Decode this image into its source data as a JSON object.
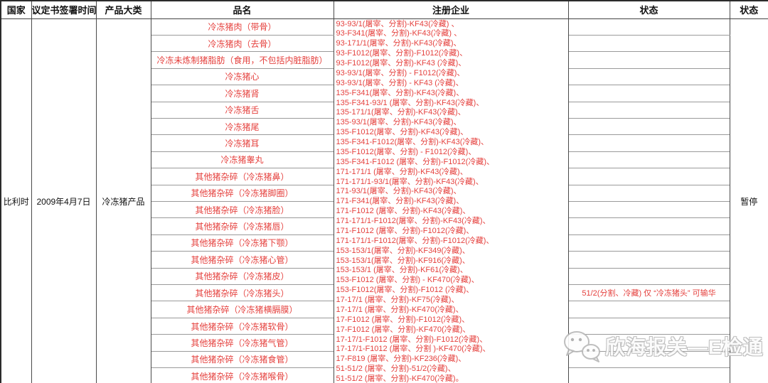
{
  "colors": {
    "accent_red": "#e5413e",
    "border_dark": "#4a4a4a",
    "border_light": "#9a9a9a",
    "watermark_gray": "#b8b8b8"
  },
  "header": {
    "columns": [
      "国家",
      "议定书签署时间",
      "产品大类",
      "品名",
      "注册企业",
      "状态",
      "状态"
    ]
  },
  "record": {
    "country": "比利时",
    "protocol_date": "2009年4月7日",
    "product_category": "冷冻猪产品",
    "final_status": "暂停",
    "products": [
      {
        "name": "冷冻猪肉（带骨）",
        "status": ""
      },
      {
        "name": "冷冻猪肉（去骨）",
        "status": ""
      },
      {
        "name": "冷冻未炼制猪脂肪（食用，不包括内脏脂肪）",
        "status": ""
      },
      {
        "name": "冷冻猪心",
        "status": ""
      },
      {
        "name": "冷冻猪肾",
        "status": ""
      },
      {
        "name": "冷冻猪舌",
        "status": ""
      },
      {
        "name": "冷冻猪尾",
        "status": ""
      },
      {
        "name": "冷冻猪耳",
        "status": ""
      },
      {
        "name": "冷冻猪睾丸",
        "status": ""
      },
      {
        "name": "其他猪杂碎（冷冻猪鼻）",
        "status": ""
      },
      {
        "name": "其他猪杂碎（冷冻猪脚圈）",
        "status": ""
      },
      {
        "name": "其他猪杂碎（冷冻猪脸）",
        "status": ""
      },
      {
        "name": "其他猪杂碎（冷冻猪唇）",
        "status": ""
      },
      {
        "name": "其他猪杂碎（冷冻猪下颚）",
        "status": ""
      },
      {
        "name": "其他猪杂碎（冷冻猪心管）",
        "status": ""
      },
      {
        "name": "其他猪杂碎（冷冻猪皮）",
        "status": ""
      },
      {
        "name": "其他猪杂碎（冷冻猪头）",
        "status": "51/2(分割、冷藏) 仅 “冷冻猪头” 可输华"
      },
      {
        "name": "其他猪杂碎（冷冻猪横膈膜）",
        "status": ""
      },
      {
        "name": "其他猪杂碎（冷冻猪软骨）",
        "status": ""
      },
      {
        "name": "其他猪杂碎（冷冻猪气管）",
        "status": ""
      },
      {
        "name": "其他猪杂碎（冷冻猪食管）",
        "status": ""
      },
      {
        "name": "其他猪杂碎（冷冻猪喉骨）",
        "status": ""
      }
    ],
    "registered_enterprises": [
      "93-93/1(屠宰、分割)-KF43(冷藏) 、",
      "93-F341(屠宰、分割)-KF43(冷藏) 、",
      "93-171/1(屠宰、分割)-KF43(冷藏)、",
      "93-F1012(屠宰、分割)-F1012(冷藏)、",
      "93-F1012(屠宰、分割)-KF43 (冷藏)、",
      "93-93/1(屠宰、分割) - F1012(冷藏)、",
      "93-93/1(屠宰、分割) - KF43 (冷藏)、",
      "135-F341(屠宰、分割)-KF43(冷藏)、",
      "135-F341-93/1 (屠宰、分割)-KF43(冷藏)、",
      "135-171/1(屠宰、分割)-KF43(冷藏)、",
      "135-93/1(屠宰、分割)-KF43(冷藏)、",
      "135-F1012(屠宰、分割)-KF43(冷藏)、",
      "135-F341-F1012(屠宰、分割)-KF43(冷藏)、",
      "135-F1012(屠宰、分割) - F1012(冷藏)、",
      "135-F341-F1012 (屠宰、分割)-F1012(冷藏)、",
      "171-171/1 (屠宰、分割)-KF43(冷藏)、",
      "171-171/1-93/1(屠宰、分割)-KF43(冷藏)、",
      "171-93/1(屠宰、分割)-KF43(冷藏)、",
      "171-F341(屠宰、分割)-KF43(冷藏)、",
      "171-F1012 (屠宰、分割)-KF43(冷藏)、",
      "171-171/1-F1012(屠宰、分割)-KF43(冷藏)、",
      "171-F1012 (屠宰、分割)-F1012(冷藏)、",
      "171-171/1-F1012(屠宰、分割)-F1012(冷藏)、",
      "153-153/1(屠宰、分割)-KF349(冷藏)、",
      "153-153/1(屠宰、分割)-KF916(冷藏)、",
      "153-153/1 (屠宰、分割)-KF61(冷藏)、",
      "153-F1012 (屠宰、分割) - KF470(冷藏)、",
      "153-F1012(屠宰、分割)-F1012 (冷藏)、",
      "17-17/1 (屠宰、分割)-KF75(冷藏)、",
      "17-17/1 (屠宰、分割)-KF470(冷藏)、",
      "17-F1012 (屠宰、分割)-F1012(冷藏)、",
      "17-F1012 (屠宰、分割)-KF470(冷藏)、",
      "17-17/1-F1012 (屠宰、分割)-F1012(冷藏)、",
      "17-17/1-F1012 (屠宰、分割 )-KF470(冷藏)、",
      "17-F819 (屠宰、分割)-KF236(冷藏)、",
      "51-51/2 (屠宰、分割)-51/2(冷藏)、",
      "51-51/2 (屠宰、分割)-KF470(冷藏)。"
    ]
  },
  "watermark": {
    "text": "欣海报关—E检通",
    "icon": "wechat-icon"
  }
}
